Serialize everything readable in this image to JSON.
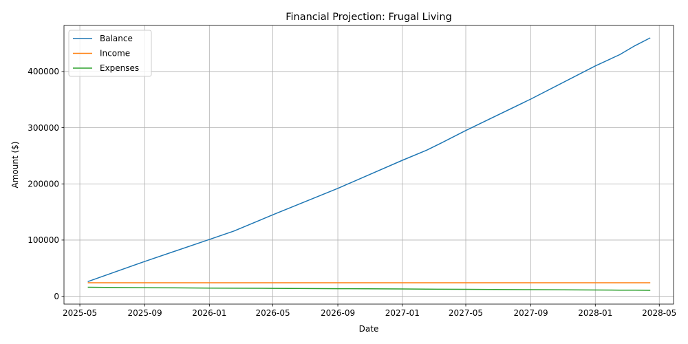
{
  "chart_data": {
    "type": "line",
    "title": "Financial Projection: Frugal Living",
    "xlabel": "Date",
    "ylabel": "Amount ($)",
    "x_axis": "date",
    "xlim": [
      "2025-04-01",
      "2028-05-28"
    ],
    "ylim": [
      -14000,
      482000
    ],
    "x_ticks": [
      "2025-05",
      "2025-09",
      "2026-01",
      "2026-05",
      "2026-09",
      "2027-01",
      "2027-05",
      "2027-09",
      "2028-01",
      "2028-05"
    ],
    "y_ticks": [
      0,
      100000,
      200000,
      300000,
      400000
    ],
    "y_tick_labels": [
      "0",
      "100000",
      "200000",
      "300000",
      "400000"
    ],
    "grid": true,
    "legend_position": "top-left",
    "x": [
      "2025-05-16",
      "2025-09-01",
      "2026-01-01",
      "2026-02-16",
      "2026-05-01",
      "2026-09-01",
      "2027-01-01",
      "2027-02-16",
      "2027-03-16",
      "2027-05-01",
      "2027-09-01",
      "2028-01-01",
      "2028-02-16",
      "2028-03-16",
      "2028-04-14"
    ],
    "series": [
      {
        "name": "Balance",
        "color": "#1f77b4",
        "values": [
          26000,
          62000,
          101000,
          116000,
          145000,
          192000,
          242000,
          260000,
          273000,
          295000,
          351000,
          410000,
          430000,
          446000,
          460000
        ]
      },
      {
        "name": "Income",
        "color": "#ff7f0e",
        "values": [
          24000,
          24000,
          24000,
          24000,
          24000,
          24000,
          24000,
          24000,
          24000,
          24000,
          24000,
          24000,
          24000,
          24000,
          24000
        ]
      },
      {
        "name": "Expenses",
        "color": "#2ca02c",
        "values": [
          16000,
          15200,
          14500,
          14300,
          14000,
          13400,
          12900,
          12700,
          12500,
          12300,
          11700,
          11100,
          10900,
          10700,
          10500
        ]
      }
    ]
  }
}
